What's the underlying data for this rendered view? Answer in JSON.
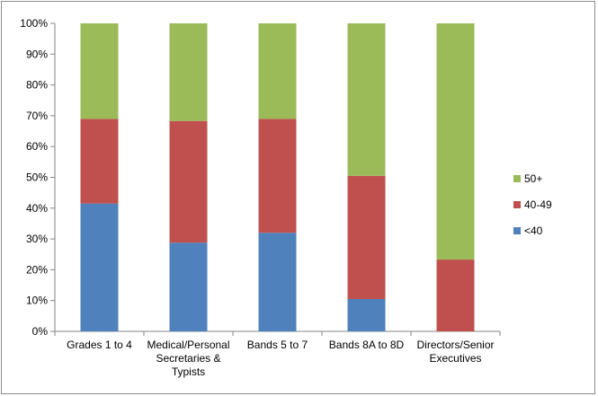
{
  "chart_data": {
    "type": "bar",
    "stacked": true,
    "percent": true,
    "categories": [
      [
        "Grades 1 to 4"
      ],
      [
        "Medical/Personal",
        "Secretaries &",
        "Typists"
      ],
      [
        "Bands 5 to 7"
      ],
      [
        "Bands 8A to 8D"
      ],
      [
        "Directors/Senior",
        "Executives"
      ]
    ],
    "series": [
      {
        "name": "<40",
        "color": "#4f81bd",
        "values": [
          41.5,
          28.8,
          32.0,
          10.5,
          0.0
        ]
      },
      {
        "name": "40-49",
        "color": "#c0504d",
        "values": [
          27.5,
          39.5,
          37.0,
          40.0,
          23.3
        ]
      },
      {
        "name": "50+",
        "color": "#9bbb59",
        "values": [
          31.0,
          31.7,
          31.0,
          49.5,
          76.7
        ]
      }
    ],
    "legend_order": [
      "50+",
      "40-49",
      "<40"
    ],
    "legend_position": "right",
    "ylim": [
      0,
      100
    ],
    "yticks": [
      "0%",
      "10%",
      "20%",
      "30%",
      "40%",
      "50%",
      "60%",
      "70%",
      "80%",
      "90%",
      "100%"
    ],
    "grid": false
  }
}
